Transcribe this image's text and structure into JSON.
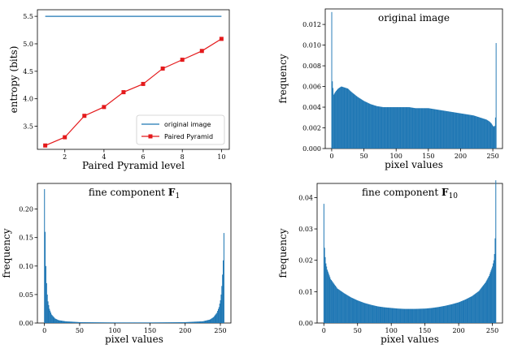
{
  "chart_data": [
    {
      "type": "line",
      "title": "",
      "xlabel": "Paired Pyramid level",
      "ylabel": "entropy (bits)",
      "xlim": [
        0.6,
        10.4
      ],
      "ylim": [
        3.08,
        5.62
      ],
      "xticks": [
        2,
        4,
        6,
        8,
        10
      ],
      "yticks": [
        3.5,
        4.0,
        4.5,
        5.0,
        5.5
      ],
      "ytick_labels": [
        "3.5",
        "4.0",
        "4.5",
        "5.0",
        "5.5"
      ],
      "grid": false,
      "legend": "lower-right",
      "series": [
        {
          "name": "original image",
          "color": "#1f77b4",
          "marker": "none",
          "x": [
            1,
            10
          ],
          "y": [
            5.5,
            5.5
          ]
        },
        {
          "name": "Paired Pyramid",
          "color": "#e41a1c",
          "marker": "square",
          "x": [
            1,
            2,
            3,
            4,
            5,
            6,
            7,
            8,
            9,
            10
          ],
          "y": [
            3.15,
            3.3,
            3.69,
            3.85,
            4.12,
            4.27,
            4.55,
            4.71,
            4.87,
            5.09
          ]
        }
      ]
    },
    {
      "type": "histogram",
      "title": "original image",
      "xlabel": "pixel values",
      "ylabel": "frequency",
      "xlim": [
        -10,
        265
      ],
      "ylim": [
        0,
        0.0135
      ],
      "xticks": [
        0,
        50,
        100,
        150,
        200,
        250
      ],
      "yticks": [
        0.0,
        0.002,
        0.004,
        0.006,
        0.008,
        0.01,
        0.012
      ],
      "ytick_labels": [
        "0.000",
        "0.002",
        "0.004",
        "0.006",
        "0.008",
        "0.010",
        "0.012"
      ],
      "color": "#1f77b4",
      "profile": {
        "x": [
          0,
          1,
          3,
          6,
          10,
          15,
          20,
          25,
          30,
          40,
          50,
          60,
          70,
          80,
          90,
          100,
          110,
          120,
          130,
          140,
          150,
          160,
          170,
          180,
          190,
          200,
          210,
          220,
          230,
          240,
          245,
          248,
          250,
          252,
          253,
          254,
          255
        ],
        "y": [
          0.0132,
          0.0065,
          0.0052,
          0.0055,
          0.0058,
          0.006,
          0.0059,
          0.0058,
          0.0055,
          0.005,
          0.0046,
          0.0043,
          0.0041,
          0.004,
          0.004,
          0.004,
          0.004,
          0.004,
          0.0039,
          0.0039,
          0.0039,
          0.0038,
          0.0037,
          0.0036,
          0.0035,
          0.0034,
          0.0033,
          0.0032,
          0.003,
          0.0028,
          0.0026,
          0.0024,
          0.0022,
          0.0021,
          0.0022,
          0.003,
          0.0102
        ]
      }
    },
    {
      "type": "histogram",
      "title": "fine component $\\mathbf{F}_1$",
      "title_main": "fine component ",
      "title_bold": "F",
      "title_sub": "1",
      "xlabel": "pixel values",
      "ylabel": "frequency",
      "xlim": [
        -10,
        265
      ],
      "ylim": [
        0,
        0.245
      ],
      "xticks": [
        0,
        50,
        100,
        150,
        200,
        250
      ],
      "yticks": [
        0.0,
        0.05,
        0.1,
        0.15,
        0.2
      ],
      "ytick_labels": [
        "0.00",
        "0.05",
        "0.10",
        "0.15",
        "0.20"
      ],
      "color": "#1f77b4",
      "profile": {
        "x": [
          0,
          1,
          2,
          3,
          4,
          5,
          7,
          10,
          15,
          20,
          30,
          50,
          100,
          150,
          200,
          225,
          235,
          240,
          245,
          248,
          250,
          251,
          252,
          253,
          254,
          255
        ],
        "y": [
          0.235,
          0.16,
          0.1,
          0.07,
          0.05,
          0.038,
          0.025,
          0.015,
          0.008,
          0.005,
          0.003,
          0.0015,
          0.001,
          0.001,
          0.0015,
          0.003,
          0.006,
          0.01,
          0.018,
          0.028,
          0.04,
          0.05,
          0.065,
          0.085,
          0.11,
          0.158
        ]
      }
    },
    {
      "type": "histogram",
      "title": "fine component $\\mathbf{F}_{10}$",
      "title_main": "fine component ",
      "title_bold": "F",
      "title_sub": "10",
      "xlabel": "pixel values",
      "ylabel": "frequency",
      "xlim": [
        -10,
        265
      ],
      "ylim": [
        0,
        0.0445
      ],
      "xticks": [
        0,
        50,
        100,
        150,
        200,
        250
      ],
      "yticks": [
        0.0,
        0.01,
        0.02,
        0.03,
        0.04
      ],
      "ytick_labels": [
        "0.00",
        "0.01",
        "0.02",
        "0.03",
        "0.04"
      ],
      "color": "#1f77b4",
      "profile": {
        "x": [
          0,
          1,
          2,
          3,
          5,
          10,
          20,
          30,
          40,
          50,
          60,
          70,
          80,
          90,
          100,
          110,
          120,
          128,
          135,
          150,
          160,
          170,
          180,
          190,
          200,
          210,
          220,
          230,
          240,
          245,
          250,
          252,
          253,
          254,
          255
        ],
        "y": [
          0.038,
          0.024,
          0.021,
          0.019,
          0.017,
          0.014,
          0.011,
          0.0095,
          0.0082,
          0.0072,
          0.0064,
          0.0058,
          0.0053,
          0.005,
          0.0048,
          0.0046,
          0.0045,
          0.0045,
          0.0045,
          0.0046,
          0.0048,
          0.0051,
          0.0055,
          0.006,
          0.0066,
          0.0075,
          0.0086,
          0.0102,
          0.013,
          0.015,
          0.018,
          0.02,
          0.022,
          0.027,
          0.0455
        ]
      }
    }
  ]
}
